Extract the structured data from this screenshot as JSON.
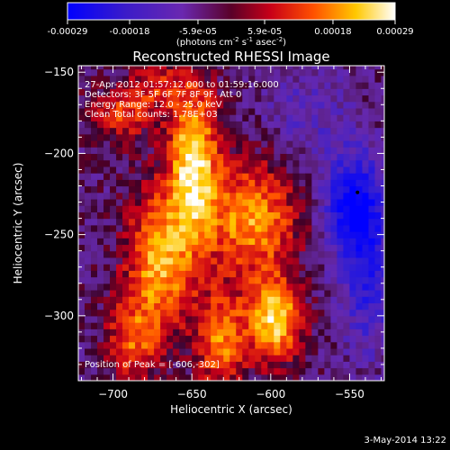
{
  "chart_data": {
    "type": "heatmap",
    "title": "Reconstructed RHESSI Image",
    "xlabel": "Heliocentric X (arcsec)",
    "ylabel": "Heliocentric Y (arcsec)",
    "xlim": [
      -722,
      -528
    ],
    "ylim": [
      -340,
      -146
    ],
    "x_ticks": [
      -700,
      -650,
      -600,
      -550
    ],
    "y_ticks": [
      -300,
      -250,
      -200,
      -150
    ],
    "colorbar": {
      "min": -0.00029,
      "max": 0.00029,
      "ticks": [
        -0.00029,
        -0.00018,
        -5.9e-05,
        5.9e-05,
        0.00018,
        0.00029
      ],
      "tick_labels": [
        "-0.00029",
        "-0.00018",
        "-5.9e-05",
        "5.9e-05",
        "0.00018",
        "0.00029"
      ],
      "unit_parts": [
        "(photons cm",
        "-2",
        " s",
        "-1",
        " asec",
        "-2",
        ")"
      ]
    },
    "info_lines": [
      "27-Apr-2012 01:57:12.000 to 01:59:16.000",
      "Detectors: 3F 5F 6F 7F 8F 9F, Att 0",
      "Energy Range: 12.0 - 25.0 keV",
      "Clean     Total counts: 1.78E+03"
    ],
    "peak_label": "Position of Peak = [-606,-302]",
    "peak_position": [
      -606,
      -302
    ],
    "marker_position": [
      -545,
      -224
    ],
    "sources": [
      {
        "x": -649,
        "y": -205,
        "amplitude": 1.0,
        "sx": 11,
        "sy": 32
      },
      {
        "x": -670,
        "y": -265,
        "amplitude": 0.85,
        "sx": 15,
        "sy": 30
      },
      {
        "x": -612,
        "y": -240,
        "amplitude": 0.8,
        "sx": 20,
        "sy": 24
      },
      {
        "x": -598,
        "y": -302,
        "amplitude": 1.0,
        "sx": 12,
        "sy": 18
      },
      {
        "x": -632,
        "y": -315,
        "amplitude": 0.7,
        "sx": 11,
        "sy": 22
      },
      {
        "x": -688,
        "y": -315,
        "amplitude": 0.55,
        "sx": 12,
        "sy": 18
      },
      {
        "x": -695,
        "y": -175,
        "amplitude": 0.5,
        "sx": 14,
        "sy": 12
      },
      {
        "x": -670,
        "y": -158,
        "amplitude": 0.4,
        "sx": 14,
        "sy": 10
      },
      {
        "x": -547,
        "y": -232,
        "amplitude": -0.85,
        "sx": 13,
        "sy": 22
      },
      {
        "x": -538,
        "y": -280,
        "amplitude": -0.5,
        "sx": 12,
        "sy": 30
      },
      {
        "x": -575,
        "y": -175,
        "amplitude": -0.25,
        "sx": 20,
        "sy": 20
      }
    ],
    "background_level": -0.12
  },
  "footer": {
    "timestamp": "3-May-2014 13:22"
  }
}
